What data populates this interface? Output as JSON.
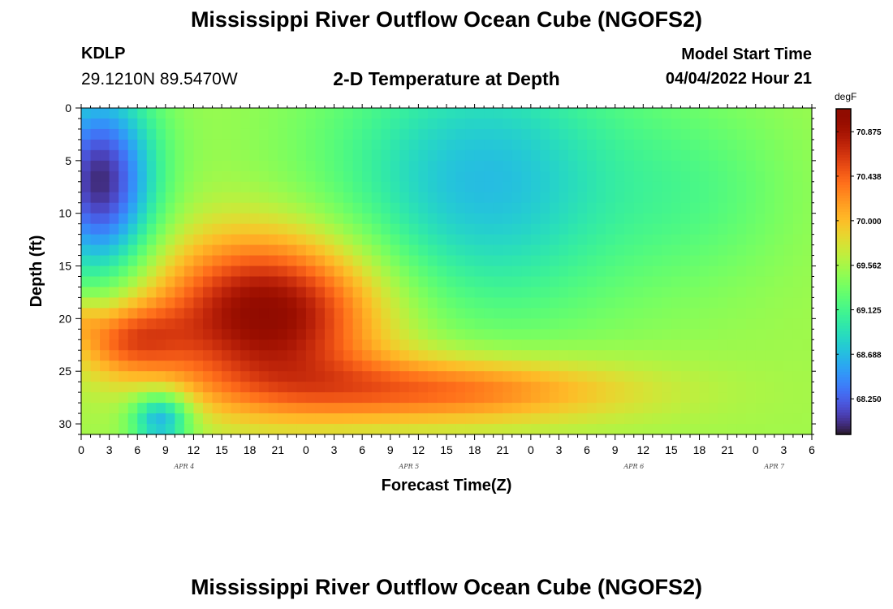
{
  "header": {
    "title": "Mississippi River Outflow Ocean Cube (NGOFS2)",
    "station_code": "KDLP",
    "station_coords": "29.1210N  89.5470W",
    "subtitle": "2-D Temperature at Depth",
    "model_start_label": "Model Start Time",
    "model_start_value": "04/04/2022 Hour 21"
  },
  "footer": {
    "title": "Mississippi River Outflow Ocean Cube (NGOFS2)"
  },
  "chart_data": {
    "type": "heatmap",
    "title": "2-D Temperature at Depth",
    "xlabel": "Forecast Time(Z)",
    "ylabel": "Depth (ft)",
    "x_ticks": [
      "0",
      "3",
      "6",
      "9",
      "12",
      "15",
      "18",
      "21",
      "0",
      "3",
      "6",
      "9",
      "12",
      "15",
      "18",
      "21",
      "0",
      "3",
      "6",
      "9",
      "12",
      "15",
      "18",
      "21",
      "0",
      "3",
      "6"
    ],
    "day_labels": [
      {
        "label": "APR 4",
        "hour": 11
      },
      {
        "label": "APR 5",
        "hour": 35
      },
      {
        "label": "APR 6",
        "hour": 59
      },
      {
        "label": "APR 7",
        "hour": 74
      }
    ],
    "x_range_hours": [
      0,
      78
    ],
    "y_ticks": [
      0,
      5,
      10,
      15,
      20,
      25,
      30
    ],
    "y_range_ft": [
      0,
      31
    ],
    "colorbar": {
      "unit": "degF",
      "ticks": [
        "70.875",
        "70.438",
        "70.000",
        "69.562",
        "69.125",
        "68.688",
        "68.250"
      ],
      "tick_values": [
        70.875,
        70.438,
        70.0,
        69.562,
        69.125,
        68.688,
        68.25
      ],
      "range": [
        67.9,
        71.1
      ],
      "colormap": "turbo"
    },
    "field_features": [
      {
        "name": "cold surface water",
        "hour": 2,
        "depth": 8,
        "value": 68.05
      },
      {
        "name": "cold bottom water",
        "hour": 8.5,
        "depth": 29.5,
        "value": 68.3
      },
      {
        "name": "warm core",
        "hour": 21,
        "depth": 21,
        "value": 71.0
      },
      {
        "name": "warm bottom layer",
        "hour": 36,
        "depth": 27,
        "value": 70.4
      },
      {
        "name": "mid-forecast surface",
        "hour": 42,
        "depth": 8,
        "value": 68.75
      },
      {
        "name": "late forecast surface",
        "hour": 70,
        "depth": 8,
        "value": 69.35
      },
      {
        "name": "late forecast bottom",
        "hour": 68,
        "depth": 27,
        "value": 69.85
      }
    ]
  }
}
